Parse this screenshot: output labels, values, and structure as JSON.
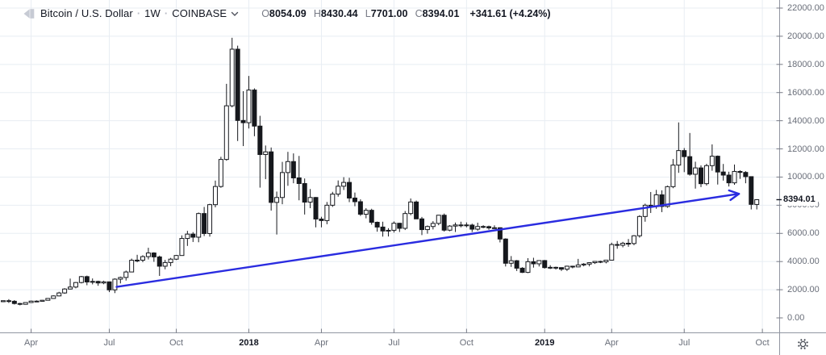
{
  "header": {
    "symbol_logo_icon": "symbol-logo-placeholder",
    "title": "Bitcoin / U.S. Dollar",
    "separator": "·",
    "interval": "1W",
    "exchange": "COINBASE",
    "chevron_icon": "chevron-down",
    "ohlc": {
      "open_label": "O",
      "open": "8054.09",
      "high_label": "H",
      "high": "8430.44",
      "low_label": "L",
      "low": "7701.00",
      "close_label": "C",
      "close": "8394.01",
      "change": "+341.61 (+4.24%)"
    }
  },
  "price_scale": {
    "tick_labels_top_to_bottom": [
      "22000.00",
      "20000.00",
      "18000.00",
      "16000.00",
      "14000.00",
      "12000.00",
      "10000.00",
      "8000.00",
      "6000.00",
      "4000.00",
      "2000.00",
      "0.00"
    ],
    "last_price_label": "8394.01"
  },
  "footer": {
    "gear_icon": "settings-gear"
  },
  "colors": {
    "background": "#ffffff",
    "grid": "#e8edf3",
    "axis_line": "#9196a1",
    "axis_text": "#696e79",
    "axis_text_strong": "#131722",
    "text_dark": "#131722",
    "text_gray": "#787b86",
    "candle_up_fill": "#ffffff",
    "candle_down_fill": "#16181d",
    "candle_border": "#16181d",
    "trendline_blue": "#2a2ce0",
    "price_tag_bg": "#ffffff",
    "price_tag_text": "#131722"
  },
  "chart_data": {
    "type": "candlestick",
    "title": "Bitcoin / U.S. Dollar",
    "interval": "1W",
    "exchange": "COINBASE",
    "y_axis": {
      "min": 0,
      "max": 22000,
      "tick_step": 2000,
      "tick_values": [
        22000,
        20000,
        18000,
        16000,
        14000,
        12000,
        10000,
        8000,
        6000,
        4000,
        2000,
        0
      ],
      "grid": true
    },
    "x_axis": {
      "grid": true,
      "ticks": [
        {
          "label": "Apr",
          "index": 5,
          "strong": false
        },
        {
          "label": "Jul",
          "index": 19,
          "strong": false
        },
        {
          "label": "Oct",
          "index": 31,
          "strong": false
        },
        {
          "label": "2018",
          "index": 44,
          "strong": true
        },
        {
          "label": "Apr",
          "index": 57,
          "strong": false
        },
        {
          "label": "Jul",
          "index": 70,
          "strong": false
        },
        {
          "label": "Oct",
          "index": 83,
          "strong": false
        },
        {
          "label": "2019",
          "index": 97,
          "strong": true
        },
        {
          "label": "Apr",
          "index": 109,
          "strong": false
        },
        {
          "label": "Jul",
          "index": 122,
          "strong": false
        },
        {
          "label": "Oct",
          "index": 136,
          "strong": false
        }
      ]
    },
    "candles_format": [
      "open",
      "high",
      "low",
      "close"
    ],
    "candles": [
      [
        1150,
        1230,
        1120,
        1220
      ],
      [
        1220,
        1330,
        1060,
        1180
      ],
      [
        1180,
        1260,
        950,
        1020
      ],
      [
        1020,
        1070,
        890,
        965
      ],
      [
        965,
        1110,
        940,
        1090
      ],
      [
        1090,
        1230,
        1080,
        1190
      ],
      [
        1190,
        1240,
        1130,
        1180
      ],
      [
        1180,
        1270,
        1170,
        1250
      ],
      [
        1250,
        1390,
        1240,
        1380
      ],
      [
        1380,
        1600,
        1370,
        1560
      ],
      [
        1560,
        1850,
        1530,
        1770
      ],
      [
        1770,
        2110,
        1710,
        2050
      ],
      [
        2050,
        2790,
        2020,
        2190
      ],
      [
        2190,
        2550,
        2100,
        2510
      ],
      [
        2510,
        2980,
        2450,
        2930
      ],
      [
        2930,
        3000,
        2320,
        2550
      ],
      [
        2550,
        2800,
        2380,
        2590
      ],
      [
        2590,
        2640,
        2280,
        2480
      ],
      [
        2480,
        2640,
        2390,
        2560
      ],
      [
        2560,
        2580,
        1830,
        1990
      ],
      [
        1990,
        2810,
        1760,
        2750
      ],
      [
        2750,
        2930,
        2450,
        2870
      ],
      [
        2870,
        3360,
        2650,
        3260
      ],
      [
        3260,
        4210,
        3250,
        4090
      ],
      [
        4090,
        4480,
        3950,
        4100
      ],
      [
        4100,
        4450,
        3950,
        4350
      ],
      [
        4350,
        4980,
        4150,
        4610
      ],
      [
        4610,
        4660,
        3980,
        4330
      ],
      [
        4330,
        4420,
        2980,
        3670
      ],
      [
        3670,
        4120,
        3450,
        3930
      ],
      [
        3930,
        4260,
        3670,
        4170
      ],
      [
        4170,
        4470,
        4110,
        4430
      ],
      [
        4430,
        5860,
        4420,
        5640
      ],
      [
        5640,
        6180,
        5110,
        5950
      ],
      [
        5950,
        6090,
        5390,
        5730
      ],
      [
        5730,
        7480,
        5370,
        7410
      ],
      [
        7410,
        7880,
        5810,
        5990
      ],
      [
        5990,
        8100,
        5770,
        8040
      ],
      [
        8040,
        9750,
        7850,
        9330
      ],
      [
        9330,
        11440,
        9240,
        11250
      ],
      [
        11250,
        16620,
        11160,
        15060
      ],
      [
        15060,
        19890,
        14950,
        19080
      ],
      [
        19080,
        19330,
        12560,
        14020
      ],
      [
        14020,
        16100,
        12200,
        13860
      ],
      [
        13860,
        17180,
        13450,
        16180
      ],
      [
        16180,
        16300,
        12900,
        13620
      ],
      [
        13620,
        14350,
        9250,
        11600
      ],
      [
        11600,
        12240,
        9850,
        11790
      ],
      [
        11790,
        12100,
        7620,
        8200
      ],
      [
        8200,
        8970,
        5920,
        8550
      ],
      [
        8550,
        11080,
        8070,
        10320
      ],
      [
        10320,
        11790,
        9380,
        11100
      ],
      [
        11100,
        11680,
        9560,
        9940
      ],
      [
        9940,
        11500,
        8350,
        9540
      ],
      [
        9540,
        9900,
        7340,
        8220
      ],
      [
        8220,
        9150,
        7790,
        8550
      ],
      [
        8550,
        8580,
        6430,
        7020
      ],
      [
        7020,
        7180,
        6430,
        6910
      ],
      [
        6910,
        8230,
        6650,
        8000
      ],
      [
        8000,
        8950,
        7880,
        8790
      ],
      [
        8790,
        9760,
        8610,
        9350
      ],
      [
        9350,
        9990,
        9080,
        9620
      ],
      [
        9620,
        9950,
        8220,
        8510
      ],
      [
        8510,
        8900,
        7930,
        8250
      ],
      [
        8250,
        8420,
        7240,
        7360
      ],
      [
        7360,
        7790,
        7070,
        7640
      ],
      [
        7640,
        7750,
        6620,
        6790
      ],
      [
        6790,
        6840,
        6120,
        6450
      ],
      [
        6450,
        6830,
        5770,
        6170
      ],
      [
        6170,
        6370,
        5780,
        6220
      ],
      [
        6220,
        6850,
        6060,
        6720
      ],
      [
        6720,
        6750,
        6100,
        6360
      ],
      [
        6360,
        7590,
        6240,
        7410
      ],
      [
        7410,
        8480,
        7290,
        8230
      ],
      [
        8230,
        8330,
        7020,
        7030
      ],
      [
        7030,
        7170,
        5880,
        6270
      ],
      [
        6270,
        6560,
        5980,
        6490
      ],
      [
        6490,
        6870,
        6280,
        6710
      ],
      [
        6710,
        7310,
        6580,
        7290
      ],
      [
        7290,
        7410,
        6130,
        6230
      ],
      [
        6230,
        6590,
        6150,
        6520
      ],
      [
        6520,
        6770,
        6100,
        6600
      ],
      [
        6600,
        6830,
        6430,
        6600
      ],
      [
        6600,
        6780,
        6430,
        6590
      ],
      [
        6590,
        6690,
        6100,
        6300
      ],
      [
        6300,
        6760,
        6190,
        6490
      ],
      [
        6490,
        6580,
        6370,
        6480
      ],
      [
        6480,
        6550,
        6260,
        6390
      ],
      [
        6390,
        6570,
        6340,
        6400
      ],
      [
        6400,
        6430,
        5360,
        5600
      ],
      [
        5600,
        5650,
        3650,
        3880
      ],
      [
        3880,
        4390,
        3620,
        4060
      ],
      [
        4060,
        4110,
        3330,
        3530
      ],
      [
        3530,
        3600,
        3190,
        3230
      ],
      [
        3230,
        4240,
        3180,
        3990
      ],
      [
        3990,
        4270,
        3570,
        3840
      ],
      [
        3840,
        4090,
        3650,
        4070
      ],
      [
        4070,
        4110,
        3500,
        3570
      ],
      [
        3570,
        3740,
        3470,
        3590
      ],
      [
        3590,
        3640,
        3430,
        3570
      ],
      [
        3570,
        3590,
        3330,
        3460
      ],
      [
        3460,
        3710,
        3330,
        3670
      ],
      [
        3670,
        3700,
        3520,
        3620
      ],
      [
        3620,
        4190,
        3600,
        3760
      ],
      [
        3760,
        3890,
        3660,
        3820
      ],
      [
        3820,
        3950,
        3660,
        3920
      ],
      [
        3920,
        4040,
        3830,
        4010
      ],
      [
        4010,
        4060,
        3890,
        3980
      ],
      [
        3980,
        4110,
        3870,
        4100
      ],
      [
        4100,
        5340,
        4080,
        5210
      ],
      [
        5210,
        5460,
        4910,
        5160
      ],
      [
        5160,
        5400,
        5010,
        5300
      ],
      [
        5300,
        5600,
        5050,
        5280
      ],
      [
        5280,
        5880,
        5160,
        5830
      ],
      [
        5830,
        7290,
        5700,
        7200
      ],
      [
        7200,
        8110,
        6830,
        8000
      ],
      [
        8000,
        8940,
        7450,
        7900
      ],
      [
        7900,
        9090,
        7750,
        8740
      ],
      [
        8740,
        9060,
        7510,
        7910
      ],
      [
        7910,
        9390,
        7820,
        9320
      ],
      [
        9320,
        11280,
        9210,
        10850
      ],
      [
        10850,
        13880,
        10300,
        11880
      ],
      [
        11880,
        12060,
        10350,
        11450
      ],
      [
        11450,
        13130,
        10100,
        10200
      ],
      [
        10200,
        11090,
        9180,
        10650
      ],
      [
        10650,
        10830,
        9290,
        9530
      ],
      [
        9530,
        10940,
        9400,
        10810
      ],
      [
        10810,
        12320,
        10450,
        11480
      ],
      [
        11480,
        11530,
        9470,
        10360
      ],
      [
        10360,
        10930,
        9750,
        10140
      ],
      [
        10140,
        10380,
        9330,
        9590
      ],
      [
        9590,
        10890,
        9450,
        10400
      ],
      [
        10400,
        10480,
        9870,
        10330
      ],
      [
        10330,
        10420,
        9560,
        10030
      ],
      [
        10030,
        10040,
        7700,
        8060
      ],
      [
        8054.09,
        8430.44,
        7701.0,
        8394.01
      ]
    ],
    "last_price": 8394.01,
    "trendline": {
      "type": "arrow",
      "color": "#2a2ce0",
      "from": {
        "index": 20.3,
        "price": 2200
      },
      "to": {
        "index": 131.8,
        "price": 8810
      }
    }
  }
}
